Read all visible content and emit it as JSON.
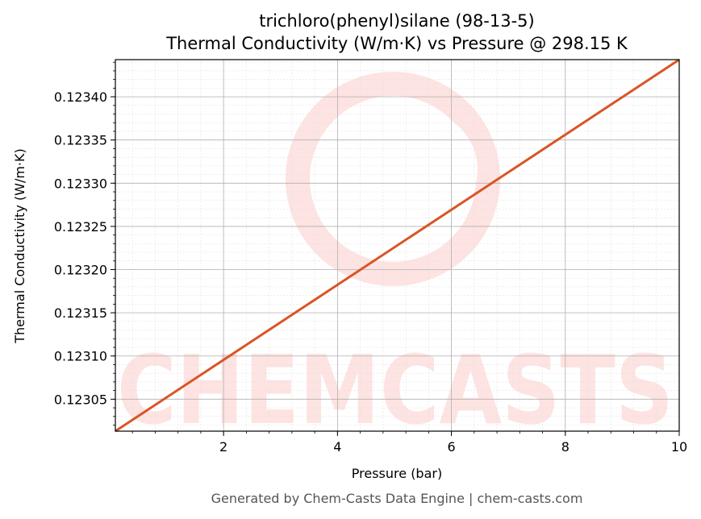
{
  "chart_data": {
    "type": "line",
    "title": "trichloro(phenyl)silane (98-13-5)",
    "subtitle": "Thermal Conductivity (W/m·K) vs Pressure @ 298.15 K",
    "xlabel": "Pressure (bar)",
    "ylabel": "Thermal Conductivity (W/m·K)",
    "xlim": [
      0.1,
      10
    ],
    "ylim": [
      0.123013,
      0.123443
    ],
    "xticks": [
      2,
      4,
      6,
      8,
      10
    ],
    "xtick_labels": [
      "2",
      "4",
      "6",
      "8",
      "10"
    ],
    "yticks": [
      0.12305,
      0.1231,
      0.12315,
      0.1232,
      0.12325,
      0.1233,
      0.12335,
      0.1234
    ],
    "ytick_labels": [
      "0.12305",
      "0.12310",
      "0.12315",
      "0.12320",
      "0.12325",
      "0.12330",
      "0.12335",
      "0.12340"
    ],
    "grid": true,
    "series": [
      {
        "color": "#d95525",
        "x": [
          0.1,
          10
        ],
        "y": [
          0.123013,
          0.123443
        ]
      }
    ]
  },
  "watermark": "CHEMCASTS",
  "footer": "Generated by Chem-Casts Data Engine | chem-casts.com"
}
